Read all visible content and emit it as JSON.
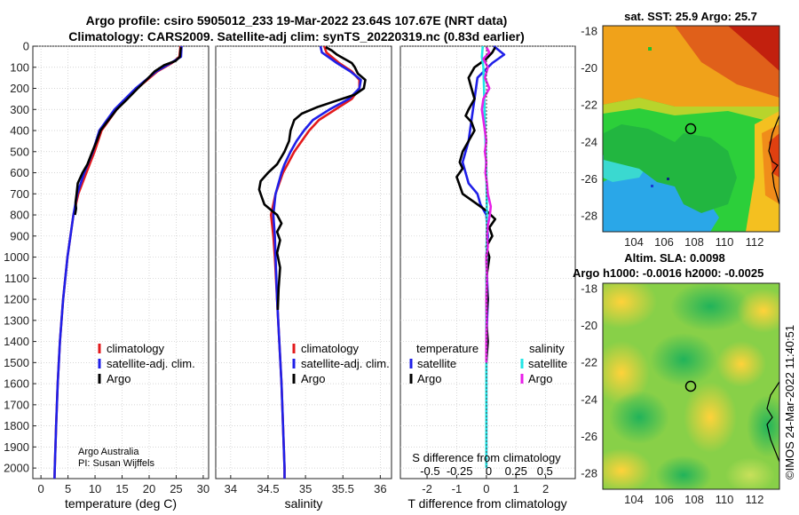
{
  "header": {
    "title_line1": "Argo profile: csiro 5905012_233 19-Mar-2022 23.64S 107.67E (NRT data)",
    "title_line2": "Climatology: CARS2009. Satellite-adj clim: synTS_20220319.nc (0.83d earlier)",
    "attribution_line1": "Argo Australia",
    "attribution_line2": "PI: Susan Wijffels",
    "imos_stamp": "©IMOS 24-Mar-2022 11:40:51"
  },
  "colors": {
    "climatology": "#e31a1c",
    "satellite_adj": "#1f1fe8",
    "argo": "#000000",
    "sat_temp": "#1f1fe8",
    "sat_sal": "#22e6e6",
    "argo_sal": "#e81fe8",
    "grid": "#c8c8c8"
  },
  "chart_data": [
    {
      "type": "line",
      "id": "temperature",
      "xlabel": "temperature (deg C)",
      "ylabel": "",
      "xlim": [
        -1.5,
        31
      ],
      "ylim": [
        2050,
        0
      ],
      "xticks": [
        0,
        5,
        10,
        15,
        20,
        25,
        30
      ],
      "xtick_labels": [
        "0",
        "5",
        "10",
        "15",
        "20",
        "25",
        "30"
      ],
      "yticks": [
        0,
        100,
        200,
        300,
        400,
        500,
        600,
        700,
        800,
        900,
        1000,
        1100,
        1200,
        1300,
        1400,
        1500,
        1600,
        1700,
        1800,
        1900,
        2000
      ],
      "ytick_labels": [
        "0",
        "100",
        "200",
        "300",
        "400",
        "500",
        "600",
        "700",
        "800",
        "900",
        "1000",
        "1100",
        "1200",
        "1300",
        "1400",
        "1500",
        "1600",
        "1700",
        "1800",
        "1900",
        "2000"
      ],
      "legend": [
        "climatology",
        "satellite-adj. clim.",
        "Argo"
      ],
      "legend_position": "center-right",
      "series": [
        {
          "name": "climatology",
          "color": "#e31a1c",
          "depth": [
            0,
            50,
            80,
            120,
            200,
            300,
            400,
            500,
            600,
            700,
            800,
            1000,
            1200,
            1400,
            1600,
            1800,
            2000,
            2050
          ],
          "values": [
            25.8,
            25.6,
            24.2,
            21.5,
            17.8,
            14.0,
            11.2,
            9.9,
            8.4,
            6.9,
            6.0,
            4.9,
            4.1,
            3.5,
            3.1,
            2.8,
            2.55,
            2.5
          ]
        },
        {
          "name": "satellite-adj. clim.",
          "color": "#1f1fe8",
          "depth": [
            0,
            50,
            80,
            120,
            200,
            300,
            400,
            500,
            600,
            700,
            800,
            1000,
            1200,
            1400,
            1600,
            1800,
            2000,
            2050
          ],
          "values": [
            26.0,
            25.9,
            24.0,
            21.3,
            17.5,
            13.6,
            10.8,
            9.6,
            8.0,
            6.7,
            6.0,
            4.9,
            4.1,
            3.5,
            3.1,
            2.8,
            2.55,
            2.5
          ]
        },
        {
          "name": "Argo",
          "color": "#000000",
          "depth": [
            5,
            20,
            50,
            70,
            90,
            120,
            160,
            200,
            250,
            300,
            350,
            400,
            450,
            500,
            560,
            600,
            650,
            700,
            740,
            770,
            800
          ],
          "values": [
            25.9,
            25.8,
            25.7,
            24.9,
            22.8,
            21.0,
            19.5,
            17.9,
            16.0,
            14.0,
            12.5,
            11.0,
            10.3,
            9.5,
            8.6,
            7.7,
            6.8,
            6.6,
            6.4,
            6.5,
            6.3
          ]
        }
      ]
    },
    {
      "type": "line",
      "id": "salinity",
      "xlabel": "salinity",
      "ylabel": "",
      "xlim": [
        33.8,
        36.15
      ],
      "ylim": [
        2050,
        0
      ],
      "xticks": [
        34,
        34.5,
        35,
        35.5,
        36
      ],
      "xtick_labels": [
        "34",
        "34.5",
        "35",
        "35.5",
        "36"
      ],
      "legend": [
        "climatology",
        "satellite-adj. clim.",
        "Argo"
      ],
      "legend_position": "center-right",
      "series": [
        {
          "name": "climatology",
          "color": "#e31a1c",
          "depth": [
            0,
            30,
            80,
            120,
            160,
            200,
            250,
            300,
            350,
            400,
            450,
            500,
            560,
            600,
            700,
            800,
            900,
            1000,
            1200,
            1400,
            1600,
            1800,
            2000,
            2050
          ],
          "values": [
            35.25,
            35.28,
            35.45,
            35.62,
            35.72,
            35.72,
            35.62,
            35.4,
            35.18,
            35.05,
            34.95,
            34.85,
            34.76,
            34.7,
            34.6,
            34.54,
            34.57,
            34.59,
            34.62,
            34.65,
            34.68,
            34.7,
            34.72,
            34.72
          ]
        },
        {
          "name": "satellite-adj. clim.",
          "color": "#1f1fe8",
          "depth": [
            0,
            30,
            80,
            120,
            160,
            200,
            250,
            300,
            350,
            400,
            450,
            500,
            560,
            600,
            700,
            800,
            900,
            1000,
            1200,
            1400,
            1600,
            1800,
            2000,
            2050
          ],
          "values": [
            35.2,
            35.22,
            35.42,
            35.6,
            35.74,
            35.72,
            35.58,
            35.32,
            35.1,
            34.98,
            34.88,
            34.8,
            34.72,
            34.68,
            34.6,
            34.57,
            34.59,
            34.6,
            34.62,
            34.65,
            34.68,
            34.7,
            34.72,
            34.72
          ]
        },
        {
          "name": "Argo",
          "color": "#000000",
          "depth": [
            5,
            20,
            40,
            60,
            80,
            100,
            130,
            160,
            200,
            230,
            260,
            290,
            320,
            350,
            400,
            450,
            500,
            560,
            600,
            640,
            680,
            720,
            750,
            780,
            800,
            840,
            880,
            920,
            980,
            1050,
            1150,
            1250
          ],
          "values": [
            35.27,
            35.35,
            35.42,
            35.52,
            35.62,
            35.66,
            35.7,
            35.8,
            35.78,
            35.66,
            35.4,
            35.15,
            34.95,
            34.85,
            34.8,
            34.78,
            34.72,
            34.62,
            34.5,
            34.4,
            34.38,
            34.42,
            34.45,
            34.55,
            34.62,
            34.68,
            34.62,
            34.66,
            34.62,
            34.66,
            34.64,
            34.63
          ]
        }
      ]
    },
    {
      "type": "line",
      "id": "difference",
      "xlabel": "T difference from climatology",
      "xlabel_top": "S difference from climatology",
      "ylabel": "",
      "xlim": [
        -2.9,
        3.0
      ],
      "ylim": [
        2050,
        0
      ],
      "xticks": [
        -2,
        -1,
        0,
        1,
        2
      ],
      "xtick_labels": [
        "-2",
        "-1",
        "0",
        "1",
        "2"
      ],
      "sal_xticks_label": "-0.5  -0.25    0    0.25   0.5",
      "legend_temperature_title": "temperature",
      "legend_salinity_title": "salinity",
      "legend_temperature": [
        "satellite",
        "Argo"
      ],
      "legend_salinity": [
        "satellite",
        "Argo"
      ],
      "series": [
        {
          "name": "temperature satellite",
          "color": "#1f1fe8",
          "depth": [
            0,
            40,
            80,
            150,
            250,
            350,
            450,
            550,
            650,
            700,
            750,
            800,
            900,
            1000,
            1200,
            1400,
            1600,
            1800,
            2000
          ],
          "values": [
            0.25,
            0.6,
            0.2,
            -0.3,
            -0.4,
            -0.5,
            -0.6,
            -0.8,
            -0.6,
            -0.3,
            -0.2,
            0.0,
            0.05,
            0.0,
            0.05,
            0.0,
            0.0,
            0.0,
            0.0
          ]
        },
        {
          "name": "temperature Argo",
          "color": "#000000",
          "depth": [
            5,
            30,
            60,
            100,
            150,
            200,
            250,
            300,
            330,
            360,
            400,
            450,
            500,
            550,
            580,
            620,
            660,
            700,
            740,
            780,
            820,
            860,
            900,
            950,
            1000,
            1100,
            1200,
            1300,
            1400,
            1500
          ],
          "values": [
            0.3,
            0.2,
            0.0,
            -0.4,
            -0.6,
            -0.5,
            -0.4,
            -0.6,
            -0.7,
            -0.5,
            -0.4,
            -0.6,
            -0.8,
            -0.9,
            -0.8,
            -1.0,
            -0.9,
            -0.8,
            -0.4,
            0.0,
            0.3,
            0.1,
            0.2,
            0.0,
            0.1,
            0.0,
            0.05,
            0.0,
            0.05,
            0.0
          ]
        },
        {
          "name": "salinity satellite",
          "color": "#22e6e6",
          "depth": [
            0,
            50,
            100,
            200,
            300,
            400,
            500,
            600,
            700,
            800,
            900,
            1000,
            1200,
            1400,
            1600,
            1800,
            2000
          ],
          "values": [
            -0.12,
            -0.15,
            -0.1,
            -0.08,
            -0.06,
            -0.04,
            -0.02,
            0.0,
            0.01,
            0.02,
            0.01,
            0.01,
            0.0,
            0.0,
            0.0,
            0.0,
            0.0
          ]
        },
        {
          "name": "salinity Argo",
          "color": "#e81fe8",
          "depth": [
            5,
            30,
            60,
            100,
            150,
            200,
            250,
            300,
            350,
            400,
            450,
            500,
            550,
            600,
            650,
            700,
            760,
            800,
            850,
            900,
            950,
            1000,
            1100,
            1200,
            1300,
            1400,
            1500
          ],
          "values": [
            0.0,
            0.1,
            -0.1,
            0.05,
            -0.05,
            0.1,
            -0.1,
            -0.15,
            -0.1,
            -0.05,
            0.0,
            -0.05,
            0.0,
            -0.03,
            0.02,
            0.05,
            0.15,
            0.12,
            0.05,
            0.02,
            0.05,
            0.0,
            0.02,
            0.0,
            0.01,
            0.0,
            0.0
          ]
        }
      ]
    }
  ],
  "maps": {
    "sst": {
      "title": "sat. SST: 25.9 Argo: 25.7",
      "lat_ticks": [
        "-18",
        "-20",
        "-22",
        "-24",
        "-26",
        "-28"
      ],
      "lon_ticks": [
        "104",
        "106",
        "108",
        "110",
        "112"
      ]
    },
    "sla": {
      "title_line1": "Altim. SLA: 0.0098",
      "title_line2": "Argo h1000: -0.0016 h2000: -0.0025",
      "lat_ticks": [
        "-18",
        "-20",
        "-22",
        "-24",
        "-26",
        "-28"
      ],
      "lon_ticks": [
        "104",
        "106",
        "108",
        "110",
        "112"
      ]
    }
  }
}
